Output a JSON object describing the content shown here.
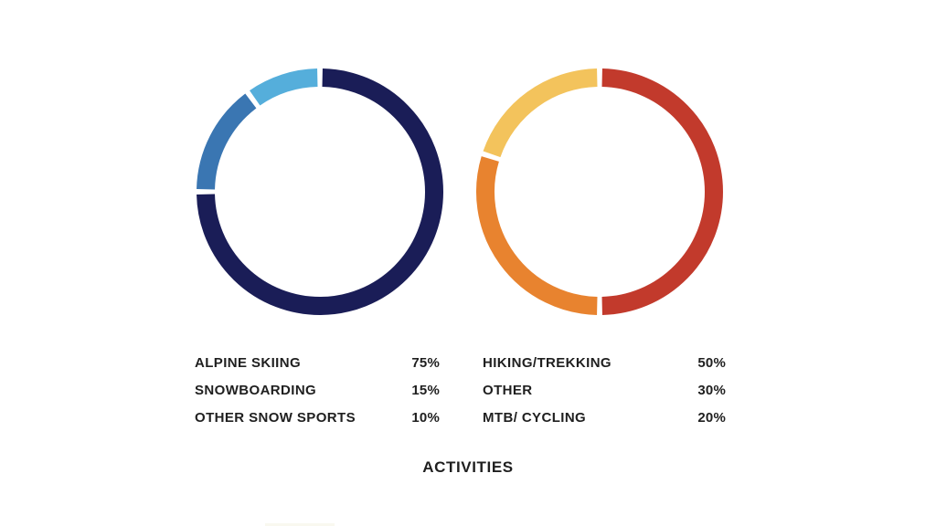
{
  "title": "ACTIVITIES",
  "chart_data": [
    {
      "type": "pie",
      "name": "snow-activities-donut",
      "donut": true,
      "start_angle_deg": 0,
      "direction": "clockwise",
      "categories": [
        "ALPINE SKIING",
        "SNOWBOARDING",
        "OTHER SNOW SPORTS"
      ],
      "values": [
        75,
        15,
        10
      ],
      "value_labels": [
        "75%",
        "15%",
        "10%"
      ],
      "colors": [
        "#1a1d57",
        "#3a76b2",
        "#55aedb"
      ]
    },
    {
      "type": "pie",
      "name": "summer-activities-donut",
      "donut": true,
      "start_angle_deg": 0,
      "direction": "clockwise",
      "categories": [
        "HIKING/TREKKING",
        "OTHER",
        "MTB/ CYCLING"
      ],
      "values": [
        50,
        30,
        20
      ],
      "value_labels": [
        "50%",
        "30%",
        "20%"
      ],
      "colors": [
        "#c23a2c",
        "#e8832f",
        "#f3c35c"
      ]
    }
  ]
}
